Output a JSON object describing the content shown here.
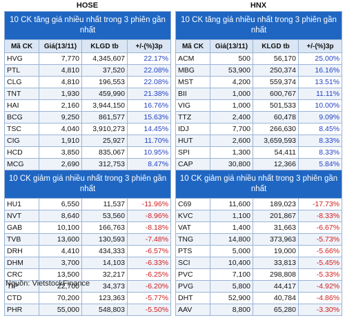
{
  "hose": {
    "exchange": "HOSE",
    "top_gainers": {
      "title": "10 CK tăng giá nhiều nhất trong 3 phiên gần nhất",
      "headers": [
        "Mã CK",
        "Giá(13/11)",
        "KLGD tb",
        "+/-(%)3p"
      ],
      "rows": [
        [
          "HVG",
          "7,770",
          "4,345,607",
          "22.17%"
        ],
        [
          "PTL",
          "4,810",
          "37,520",
          "22.08%"
        ],
        [
          "CLG",
          "4,810",
          "196,553",
          "22.08%"
        ],
        [
          "TNT",
          "1,930",
          "459,990",
          "21.38%"
        ],
        [
          "HAI",
          "2,160",
          "3,944,150",
          "16.76%"
        ],
        [
          "BCG",
          "9,250",
          "861,577",
          "15.63%"
        ],
        [
          "TSC",
          "4,040",
          "3,910,273",
          "14.45%"
        ],
        [
          "CIG",
          "1,910",
          "25,927",
          "11.70%"
        ],
        [
          "HCD",
          "3,850",
          "835,067",
          "10.95%"
        ],
        [
          "MCG",
          "2,690",
          "312,753",
          "8.47%"
        ]
      ]
    },
    "top_losers": {
      "title": "10 CK giảm giá nhiều nhất trong 3 phiên gần nhất",
      "rows": [
        [
          "HU1",
          "6,550",
          "11,537",
          "-11.96%"
        ],
        [
          "NVT",
          "8,640",
          "53,560",
          "-8.96%"
        ],
        [
          "GAB",
          "10,100",
          "166,763",
          "-8.18%"
        ],
        [
          "TVB",
          "13,600",
          "130,593",
          "-7.48%"
        ],
        [
          "DRH",
          "4,410",
          "434,333",
          "-6.57%"
        ],
        [
          "DHM",
          "3,700",
          "14,103",
          "-6.33%"
        ],
        [
          "CRC",
          "13,500",
          "32,217",
          "-6.25%"
        ],
        [
          "TIP",
          "22,700",
          "34,373",
          "-6.20%"
        ],
        [
          "CTD",
          "70,200",
          "123,363",
          "-5.77%"
        ],
        [
          "PHR",
          "55,000",
          "548,803",
          "-5.50%"
        ]
      ]
    }
  },
  "hnx": {
    "exchange": "HNX",
    "top_gainers": {
      "title": "10 CK tăng giá nhiều nhất trong 3 phiên gần nhất",
      "headers": [
        "Mã CK",
        "Giá(13/11)",
        "KLGD tb",
        "+/-(%)3p"
      ],
      "rows": [
        [
          "ACM",
          "500",
          "56,170",
          "25.00%"
        ],
        [
          "MBG",
          "53,900",
          "250,374",
          "16.16%"
        ],
        [
          "MST",
          "4,200",
          "559,374",
          "13.51%"
        ],
        [
          "BII",
          "1,000",
          "600,767",
          "11.11%"
        ],
        [
          "VIG",
          "1,000",
          "501,533",
          "10.00%"
        ],
        [
          "TTZ",
          "2,400",
          "60,478",
          "9.09%"
        ],
        [
          "IDJ",
          "7,700",
          "266,630",
          "8.45%"
        ],
        [
          "HUT",
          "2,600",
          "3,659,593",
          "8.33%"
        ],
        [
          "SPI",
          "1,300",
          "54,411",
          "8.33%"
        ],
        [
          "CAP",
          "30,800",
          "12,366",
          "5.84%"
        ]
      ]
    },
    "top_losers": {
      "title": "10 CK giảm giá nhiều nhất trong 3 phiên gần nhất",
      "rows": [
        [
          "C69",
          "11,600",
          "189,023",
          "-17.73%"
        ],
        [
          "KVC",
          "1,100",
          "201,867",
          "-8.33%"
        ],
        [
          "VAT",
          "1,400",
          "31,663",
          "-6.67%"
        ],
        [
          "TNG",
          "14,800",
          "373,963",
          "-5.73%"
        ],
        [
          "PTS",
          "5,000",
          "19,000",
          "-5.66%"
        ],
        [
          "SCI",
          "10,400",
          "33,813",
          "-5.45%"
        ],
        [
          "PVC",
          "7,100",
          "298,808",
          "-5.33%"
        ],
        [
          "PVG",
          "5,800",
          "44,417",
          "-4.92%"
        ],
        [
          "DHT",
          "52,900",
          "40,784",
          "-4.86%"
        ],
        [
          "AAV",
          "8,800",
          "65,280",
          "-3.30%"
        ]
      ]
    }
  },
  "source": "Nguồn: VietstockFinance"
}
